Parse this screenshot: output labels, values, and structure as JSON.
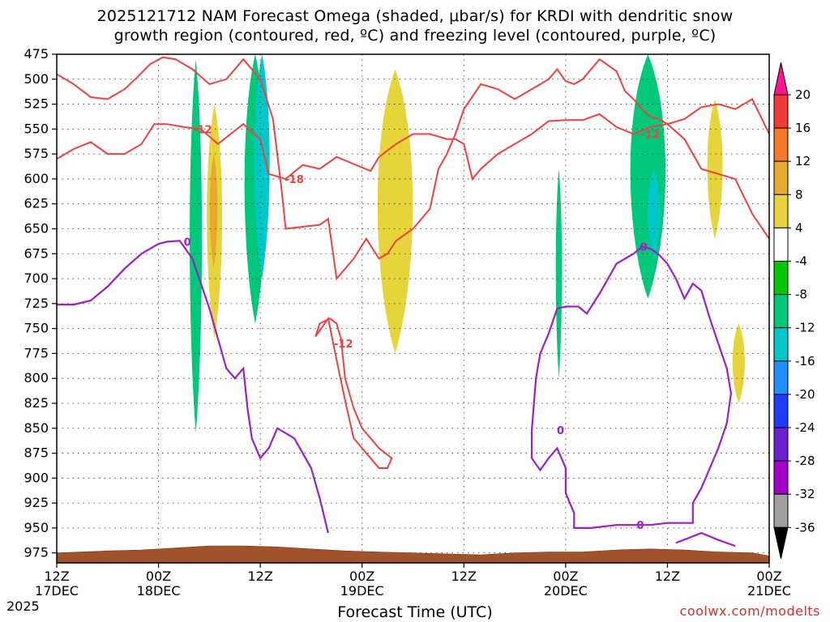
{
  "title_line1": "2025121712 NAM Forecast Omega (shaded, μbar/s) for KRDI with dendritic snow",
  "title_line2": "growth region (contoured, red, ºC) and freezing level (contoured, purple, ºC)",
  "xlabel": "Forecast Time (UTC)",
  "credit": "coolwx.com/modelts",
  "year_label": "2025",
  "chart_data": {
    "type": "heatmap",
    "y_axis": {
      "unit": "mb",
      "inverted": true,
      "range": [
        475,
        985
      ],
      "ticks": [
        475,
        500,
        525,
        550,
        575,
        600,
        625,
        650,
        675,
        700,
        725,
        750,
        775,
        800,
        825,
        850,
        875,
        900,
        925,
        950,
        975
      ]
    },
    "x_axis": {
      "range_hours": [
        0,
        84
      ],
      "ticks": [
        {
          "hour": 0,
          "line1": "12Z",
          "line2": "17DEC"
        },
        {
          "hour": 12,
          "line1": "00Z",
          "line2": "18DEC"
        },
        {
          "hour": 24,
          "line1": "12Z",
          "line2": ""
        },
        {
          "hour": 36,
          "line1": "00Z",
          "line2": "19DEC"
        },
        {
          "hour": 48,
          "line1": "12Z",
          "line2": ""
        },
        {
          "hour": 60,
          "line1": "00Z",
          "line2": "20DEC"
        },
        {
          "hour": 72,
          "line1": "12Z",
          "line2": ""
        },
        {
          "hour": 84,
          "line1": "00Z",
          "line2": "21DEC"
        }
      ]
    },
    "grid": true,
    "colorbar": {
      "labels": [
        "20",
        "16",
        "12",
        "8",
        "4",
        "-4",
        "-8",
        "-12",
        "-16",
        "-20",
        "-24",
        "-28",
        "-32",
        "-36"
      ],
      "colors": [
        "#ff1493",
        "#f23a3a",
        "#f27a2a",
        "#e6aa2e",
        "#e6d43a",
        "#ffffff",
        "#00c800",
        "#00c87a",
        "#00c8c8",
        "#1e90ff",
        "#1e3cff",
        "#6a1fd0",
        "#a000c8",
        "#a0a0a0",
        "#000000"
      ]
    },
    "omega_regions": [
      {
        "level": "-8",
        "t": [
          15.6,
          17.2
        ],
        "p": [
          480,
          855
        ]
      },
      {
        "level": "-8",
        "t": [
          22.0,
          24.8
        ],
        "p": [
          475,
          745
        ]
      },
      {
        "level": "-12",
        "t": [
          23.2,
          25.2
        ],
        "p": [
          475,
          700
        ]
      },
      {
        "level": "4",
        "t": [
          17.6,
          19.6
        ],
        "p": [
          525,
          760
        ]
      },
      {
        "level": "8",
        "t": [
          18.0,
          19.0
        ],
        "p": [
          575,
          690
        ]
      },
      {
        "level": "4",
        "t": [
          37.6,
          42.2
        ],
        "p": [
          490,
          775
        ]
      },
      {
        "level": "-8",
        "t": [
          58.8,
          59.6
        ],
        "p": [
          590,
          800
        ]
      },
      {
        "level": "-8",
        "t": [
          67.4,
          72.0
        ],
        "p": [
          475,
          720
        ]
      },
      {
        "level": "-12",
        "t": [
          69.6,
          71.2
        ],
        "p": [
          590,
          680
        ]
      },
      {
        "level": "4",
        "t": [
          76.6,
          78.6
        ],
        "p": [
          520,
          660
        ]
      },
      {
        "level": "4",
        "t": [
          79.6,
          81.2
        ],
        "p": [
          745,
          825
        ]
      }
    ],
    "contours": [
      {
        "label": "-12",
        "color": "#f04040",
        "label_positions": [
          [
            17.2,
            550
          ],
          [
            33.8,
            765
          ],
          [
            70.0,
            555
          ]
        ]
      },
      {
        "label": "-18",
        "color": "#f04040",
        "label_positions": [
          [
            28.0,
            600
          ]
        ]
      },
      {
        "label": "0",
        "color": "#9b20c8",
        "label_positions": [
          [
            15.4,
            663
          ],
          [
            59.4,
            852
          ],
          [
            68.8,
            947
          ],
          [
            69.2,
            668
          ]
        ]
      }
    ],
    "terrain_pressure_mb": 975
  }
}
